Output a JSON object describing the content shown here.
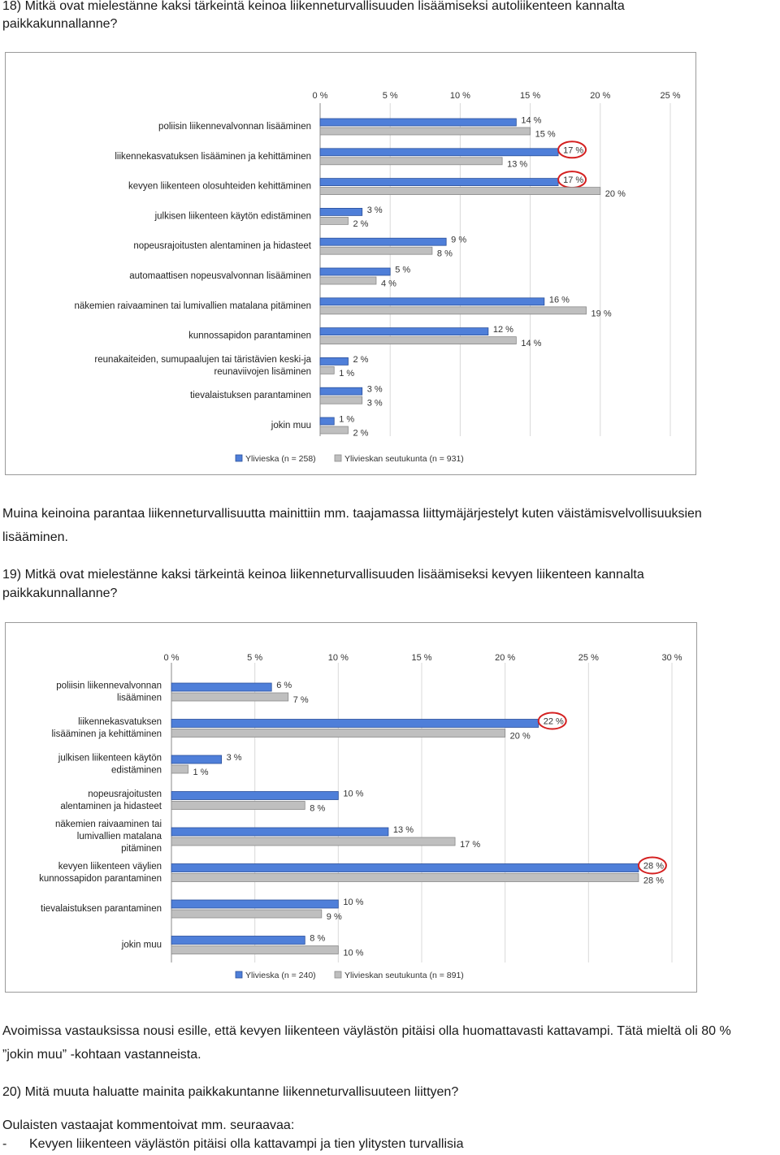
{
  "q18": {
    "title_line1": "18) Mitkä ovat mielestänne kaksi tärkeintä keinoa liikenneturvallisuuden lisäämiseksi autoliikenteen kannalta",
    "title_line2": "paikkakunnallanne?",
    "note_line1": "Muina keinoina parantaa liikenneturvallisuutta mainittiin mm. taajamassa liittymäjärjestelyt kuten väistämisvelvollisuuksien",
    "note_line2": "lisääminen."
  },
  "q19": {
    "title_line1": "19) Mitkä ovat mielestänne kaksi tärkeintä keinoa liikenneturvallisuuden lisäämiseksi kevyen liikenteen kannalta",
    "title_line2": "paikkakunnallanne?",
    "note_line1": "Avoimissa vastauksissa nousi esille, että kevyen liikenteen väylästön pitäisi olla huomattavasti kattavampi. Tätä mieltä oli 80 %",
    "note_line2": "”jokin muu” -kohtaan vastanneista."
  },
  "q20": {
    "title": "20) Mitä muuta haluatte mainita paikkakuntanne liikenneturvallisuuteen liittyen?",
    "intro": "Oulaisten vastaajat kommentoivat mm. seuraavaa:",
    "bullets": [
      "Kevyen liikenteen väylästön pitäisi olla kattavampi ja tien ylitysten turvallisia"
    ]
  },
  "colors": {
    "series1": "#4f7fd9",
    "series2": "#bfbfbf",
    "highlight_ring": "#d42020",
    "grid": "#d9d9d9"
  },
  "chart_data": [
    {
      "type": "bar",
      "orientation": "horizontal",
      "title": "",
      "xlim": [
        0,
        25
      ],
      "ticks": [
        "0 %",
        "5 %",
        "10 %",
        "15 %",
        "20 %",
        "25 %"
      ],
      "categories": [
        "poliisin liikennevalvonnan lisääminen",
        "liikennekasvatuksen lisääminen ja kehittäminen",
        "kevyen liikenteen olosuhteiden kehittäminen",
        "julkisen liikenteen käytön edistäminen",
        "nopeusrajoitusten alentaminen ja hidasteet",
        "automaattisen nopeusvalvonnan lisääminen",
        "näkemien raivaaminen tai lumivallien matalana pitäminen",
        "kunnossapidon parantaminen",
        "reunakaiteiden, sumupaalujen tai täristävien keski-ja reunaviivojen lisäminen",
        "tievalaistuksen parantaminen",
        "jokin muu"
      ],
      "series": [
        {
          "name": "Ylivieska  (n = 258)",
          "values": [
            14,
            17,
            17,
            3,
            9,
            5,
            16,
            12,
            2,
            3,
            1
          ]
        },
        {
          "name": "Ylivieskan seutukunta  (n = 931)",
          "values": [
            15,
            13,
            20,
            2,
            8,
            4,
            19,
            14,
            1,
            3,
            2
          ]
        }
      ],
      "highlighted": [
        {
          "series": 0,
          "index": 1
        },
        {
          "series": 0,
          "index": 2
        }
      ],
      "legend_position": "bottom",
      "grid": true
    },
    {
      "type": "bar",
      "orientation": "horizontal",
      "title": "",
      "xlim": [
        0,
        30
      ],
      "ticks": [
        "0 %",
        "5 %",
        "10 %",
        "15 %",
        "20 %",
        "25 %",
        "30 %"
      ],
      "categories": [
        "poliisin liikennevalvonnan lisääminen",
        "liikennekasvatuksen lisääminen ja kehittäminen",
        "julkisen liikenteen käytön edistäminen",
        "nopeusrajoitusten alentaminen ja hidasteet",
        "näkemien raivaaminen tai lumivallien matalana pitäminen",
        "kevyen liikenteen väylien kunnossapidon parantaminen",
        "tievalaistuksen parantaminen",
        "jokin muu"
      ],
      "series": [
        {
          "name": "Ylivieska  (n = 240)",
          "values": [
            6,
            22,
            3,
            10,
            13,
            28,
            10,
            8
          ]
        },
        {
          "name": "Ylivieskan seutukunta  (n = 891)",
          "values": [
            7,
            20,
            1,
            8,
            17,
            28,
            9,
            10
          ]
        }
      ],
      "highlighted": [
        {
          "series": 0,
          "index": 1
        },
        {
          "series": 0,
          "index": 5
        }
      ],
      "legend_position": "bottom",
      "grid": true
    }
  ]
}
